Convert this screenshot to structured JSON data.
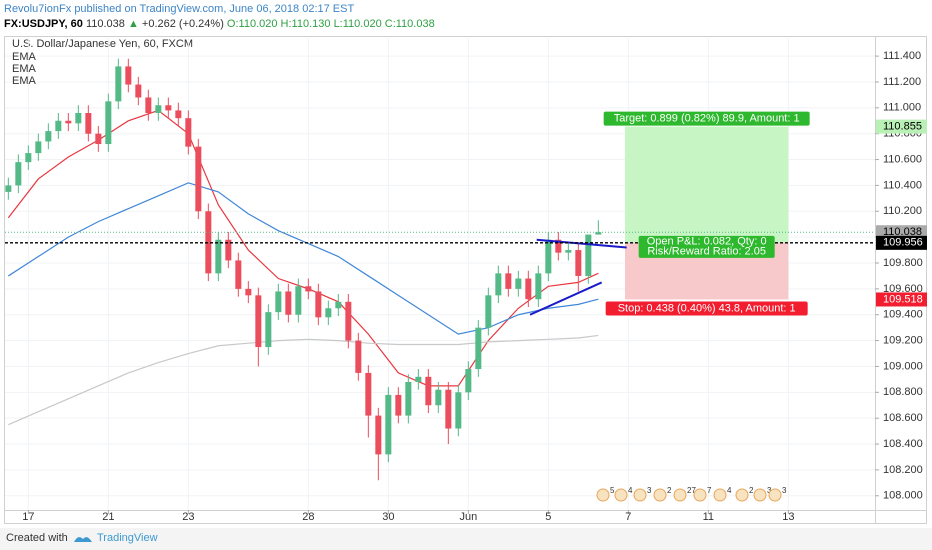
{
  "header": {
    "title": "Revolu7ionFx published on TradingView.com, June 06, 2018 02:17 EST",
    "symbol": "FX:USDJPY, 60",
    "price": "110.038",
    "arrow": "▲",
    "change": "+0.262 (+0.24%)",
    "open": "O:110.020",
    "high": "H:110.130",
    "low": "L:110.020",
    "close": "C:110.038"
  },
  "chart_data": {
    "type": "candlestick",
    "title": "U.S. Dollar/Japanese Yen, 60, FXCM",
    "up_color": "#53b987",
    "down_color": "#eb4d5c",
    "xlim": [
      -14,
      508
    ],
    "ylim": [
      107.89,
      111.54
    ],
    "xticks": [
      {
        "value": 0,
        "label": "17"
      },
      {
        "value": 48,
        "label": "21"
      },
      {
        "value": 96,
        "label": "23"
      },
      {
        "value": 168,
        "label": "28"
      },
      {
        "value": 216,
        "label": "30"
      },
      {
        "value": 264,
        "label": "Jun"
      },
      {
        "value": 312,
        "label": "5"
      },
      {
        "value": 360,
        "label": "7"
      },
      {
        "value": 408,
        "label": "11"
      },
      {
        "value": 456,
        "label": "13"
      }
    ],
    "yticks": [
      {
        "value": 108,
        "label": "108.000"
      },
      {
        "value": 108.2,
        "label": "108.200"
      },
      {
        "value": 108.4,
        "label": "108.400"
      },
      {
        "value": 108.6,
        "label": "108.600"
      },
      {
        "value": 108.8,
        "label": "108.800"
      },
      {
        "value": 109,
        "label": "109.000"
      },
      {
        "value": 109.2,
        "label": "109.200"
      },
      {
        "value": 109.4,
        "label": "109.400"
      },
      {
        "value": 109.6,
        "label": "109.600"
      },
      {
        "value": 109.8,
        "label": "109.800"
      },
      {
        "value": 110,
        "label": "110.000"
      },
      {
        "value": 110.2,
        "label": "110.200"
      },
      {
        "value": 110.4,
        "label": "110.400"
      },
      {
        "value": 110.6,
        "label": "110.600"
      },
      {
        "value": 110.8,
        "label": "110.800"
      },
      {
        "value": 111,
        "label": "111.000"
      },
      {
        "value": 111.2,
        "label": "111.200"
      },
      {
        "value": 111.4,
        "label": "111.400"
      }
    ],
    "grid": true,
    "x": [
      -12,
      -6,
      0,
      6,
      12,
      18,
      24,
      30,
      36,
      42,
      48,
      54,
      60,
      66,
      72,
      78,
      84,
      90,
      96,
      102,
      108,
      114,
      120,
      126,
      132,
      138,
      144,
      150,
      156,
      162,
      168,
      174,
      180,
      186,
      192,
      198,
      204,
      210,
      216,
      222,
      228,
      234,
      240,
      246,
      252,
      258,
      264,
      270,
      276,
      282,
      288,
      294,
      300,
      306,
      312,
      318,
      324,
      330,
      336,
      342
    ],
    "open": [
      110.35,
      110.4,
      110.58,
      110.65,
      110.74,
      110.82,
      110.9,
      110.88,
      110.96,
      110.8,
      110.72,
      111.05,
      111.32,
      111.18,
      111.08,
      110.96,
      111.02,
      110.98,
      110.92,
      110.7,
      110.2,
      109.72,
      109.98,
      109.82,
      109.6,
      109.55,
      109.15,
      109.42,
      109.58,
      109.4,
      109.62,
      109.58,
      109.38,
      109.45,
      109.5,
      109.2,
      108.95,
      108.62,
      108.32,
      108.78,
      108.62,
      108.88,
      108.92,
      108.7,
      108.82,
      108.52,
      108.8,
      108.98,
      109.3,
      109.55,
      109.72,
      109.6,
      109.68,
      109.52,
      109.72,
      109.98,
      109.88,
      109.9,
      109.7,
      110.02
    ],
    "high": [
      110.46,
      110.64,
      110.71,
      110.8,
      110.88,
      110.96,
      110.96,
      111.02,
      111.02,
      110.86,
      111.11,
      111.38,
      111.38,
      111.24,
      111.14,
      111.08,
      111.08,
      111.04,
      110.98,
      110.76,
      110.26,
      110.04,
      110.04,
      109.88,
      109.66,
      109.61,
      109.48,
      109.64,
      109.64,
      109.68,
      109.68,
      109.64,
      109.51,
      109.56,
      109.56,
      109.26,
      109.01,
      108.68,
      108.84,
      108.84,
      108.94,
      108.98,
      108.98,
      108.88,
      108.88,
      108.86,
      109.04,
      109.36,
      109.61,
      109.78,
      109.78,
      109.74,
      109.74,
      109.78,
      110.04,
      110.04,
      109.96,
      109.96,
      110.01,
      110.13
    ],
    "low": [
      110.29,
      110.34,
      110.52,
      110.59,
      110.68,
      110.76,
      110.82,
      110.82,
      110.74,
      110.66,
      110.66,
      110.99,
      111.12,
      111.02,
      110.9,
      110.9,
      110.92,
      110.86,
      110.64,
      110.14,
      109.66,
      109.66,
      109.76,
      109.54,
      109.49,
      109.0,
      109.09,
      109.36,
      109.34,
      109.34,
      109.52,
      109.32,
      109.32,
      109.39,
      109.14,
      108.89,
      108.45,
      108.12,
      108.26,
      108.56,
      108.56,
      108.82,
      108.64,
      108.64,
      108.4,
      108.46,
      108.74,
      108.92,
      109.24,
      109.49,
      109.54,
      109.54,
      109.46,
      109.46,
      109.66,
      109.82,
      109.82,
      109.58,
      109.64,
      110.02
    ],
    "close": [
      110.4,
      110.58,
      110.65,
      110.74,
      110.82,
      110.9,
      110.88,
      110.96,
      110.8,
      110.72,
      111.05,
      111.32,
      111.18,
      111.08,
      110.96,
      111.02,
      110.98,
      110.92,
      110.7,
      110.2,
      109.72,
      109.98,
      109.82,
      109.6,
      109.55,
      109.15,
      109.42,
      109.58,
      109.4,
      109.62,
      109.58,
      109.38,
      109.45,
      109.5,
      109.2,
      108.95,
      108.62,
      108.32,
      108.78,
      108.62,
      108.88,
      108.92,
      108.7,
      108.82,
      108.52,
      108.8,
      108.98,
      109.3,
      109.55,
      109.72,
      109.6,
      109.68,
      109.52,
      109.72,
      109.98,
      109.88,
      109.9,
      109.7,
      110.02,
      110.038
    ],
    "series": [
      {
        "name": "EMA",
        "color": "#e8373e",
        "x": [
          -12,
          6,
          24,
          42,
          60,
          78,
          96,
          114,
          132,
          150,
          168,
          186,
          204,
          222,
          240,
          258,
          276,
          294,
          312,
          330,
          342
        ],
        "values": [
          110.15,
          110.45,
          110.62,
          110.75,
          110.9,
          110.98,
          110.8,
          110.25,
          109.9,
          109.68,
          109.6,
          109.5,
          109.25,
          108.95,
          108.85,
          108.85,
          109.2,
          109.45,
          109.62,
          109.65,
          109.72
        ]
      },
      {
        "name": "EMA",
        "color": "#3f87d8",
        "x": [
          -12,
          6,
          24,
          42,
          60,
          78,
          96,
          114,
          132,
          150,
          168,
          186,
          204,
          222,
          240,
          258,
          276,
          294,
          312,
          330,
          342
        ],
        "values": [
          109.7,
          109.85,
          110.0,
          110.12,
          110.22,
          110.32,
          110.42,
          110.35,
          110.18,
          110.05,
          109.95,
          109.85,
          109.7,
          109.55,
          109.4,
          109.25,
          109.3,
          109.4,
          109.45,
          109.48,
          109.52
        ]
      },
      {
        "name": "EMA",
        "color": "#c8c8c8",
        "x": [
          -12,
          6,
          24,
          42,
          60,
          78,
          96,
          114,
          132,
          150,
          168,
          186,
          204,
          222,
          240,
          258,
          276,
          294,
          312,
          330,
          342
        ],
        "values": [
          108.55,
          108.65,
          108.75,
          108.85,
          108.95,
          109.03,
          109.1,
          109.16,
          109.18,
          109.2,
          109.21,
          109.2,
          109.18,
          109.17,
          109.17,
          109.17,
          109.19,
          109.2,
          109.21,
          109.22,
          109.24
        ]
      }
    ],
    "trendlines": [
      {
        "color": "#1a1acb",
        "x": [
          305,
          359
        ],
        "values": [
          109.98,
          109.92
        ]
      },
      {
        "color": "#1a1acb",
        "x": [
          301,
          344
        ],
        "values": [
          109.4,
          109.65
        ]
      }
    ],
    "last_price": 110.038,
    "position": {
      "x": [
        358,
        456
      ],
      "entry": 109.956,
      "target": 110.855,
      "stop": 109.518,
      "target_label": "Target: 0.899 (0.82%) 89.9, Amount: 1",
      "stop_label": "Stop: 0.438 (0.40%) 43.8, Amount: 1",
      "pnl_label": "Open P&L: 0.082, Qty: 0",
      "ratio_label": "Risk/Reward Ratio: 2.05"
    },
    "events": [
      "5",
      "4",
      "3",
      "2",
      "27",
      "7",
      "4",
      "2",
      "3",
      "3"
    ]
  },
  "footer": {
    "created": "Created with",
    "brand": "TradingView"
  }
}
